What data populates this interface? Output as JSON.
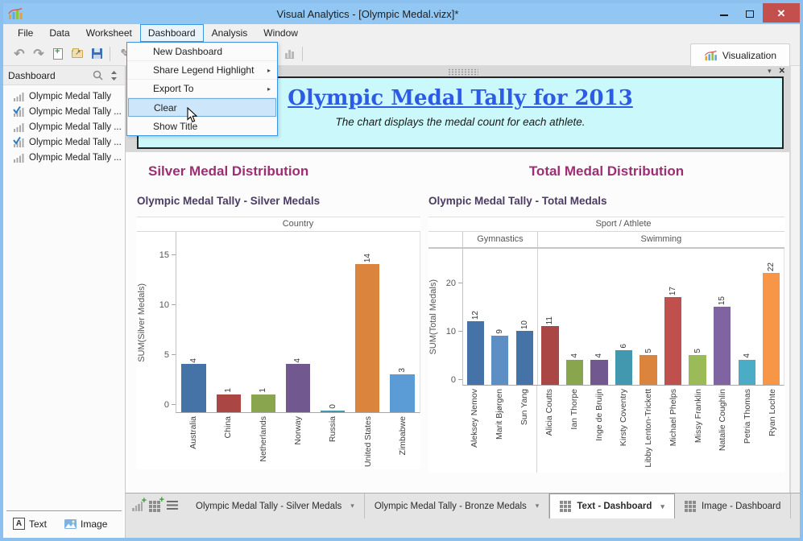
{
  "titlebar": {
    "title": "Visual Analytics - [Olympic Medal.vizx]*"
  },
  "menubar": {
    "items": [
      "File",
      "Data",
      "Worksheet",
      "Dashboard",
      "Analysis",
      "Window"
    ],
    "active_index": 3
  },
  "dashboard_menu": {
    "items": [
      {
        "label": "New Dashboard",
        "submenu": false,
        "highlighted": false
      },
      {
        "label": "Share Legend Highlight",
        "submenu": true,
        "highlighted": false
      },
      {
        "label": "Export To",
        "submenu": true,
        "highlighted": false
      },
      {
        "label": "Clear",
        "submenu": false,
        "highlighted": true
      },
      {
        "label": "Show Title",
        "submenu": false,
        "highlighted": false
      }
    ]
  },
  "toolbar": {
    "visualization_label": "Visualization"
  },
  "sidebar": {
    "header": "Dashboard",
    "items": [
      {
        "label": "Olympic Medal Tally",
        "checked": false
      },
      {
        "label": "Olympic Medal Tally ...",
        "checked": true
      },
      {
        "label": "Olympic Medal Tally ...",
        "checked": false
      },
      {
        "label": "Olympic Medal Tally ...",
        "checked": true
      },
      {
        "label": "Olympic Medal Tally ...",
        "checked": false
      }
    ],
    "footer": {
      "text_label": "Text",
      "image_label": "Image"
    }
  },
  "text_panel": {
    "title": "Olympic Medal Tally for 2013",
    "subtitle": "The chart displays the medal count for each athlete."
  },
  "chart_data": [
    {
      "type": "bar",
      "section_heading": "Silver Medal Distribution",
      "title": "Olympic Medal Tally - Silver Medals",
      "top_axis_label": "Country",
      "ylabel": "SUM(Silver Medals)",
      "yticks": [
        0,
        5,
        10,
        15
      ],
      "ylim": [
        0,
        16.5
      ],
      "grid": false,
      "groups": [
        {
          "name": null,
          "bars": [
            {
              "label": "Australia",
              "value": 4,
              "color": "#4572A7"
            },
            {
              "label": "China",
              "value": 1,
              "color": "#AA4643"
            },
            {
              "label": "Netherlands",
              "value": 1,
              "color": "#89A54E"
            },
            {
              "label": "Norway",
              "value": 4,
              "color": "#71588F"
            },
            {
              "label": "Russia",
              "value": 0,
              "color": "#4198AF"
            },
            {
              "label": "United States",
              "value": 14,
              "color": "#DB843D"
            },
            {
              "label": "Zimbabwe",
              "value": 3,
              "color": "#5B9CD6"
            }
          ]
        }
      ]
    },
    {
      "type": "bar",
      "section_heading": "Total Medal Distribution",
      "title": "Olympic Medal Tally - Total Medals",
      "top_axis_label": "Sport / Athlete",
      "ylabel": "SUM(Total Medals)",
      "yticks": [
        0,
        10,
        20
      ],
      "ylim": [
        0,
        26
      ],
      "grid": false,
      "groups": [
        {
          "name": "Gymnastics",
          "bars": [
            {
              "label": "Aleksey Nemov",
              "value": 12,
              "color": "#4572A7"
            },
            {
              "label": "Marit Bjørgen",
              "value": 9,
              "color": "#5E8FC4"
            },
            {
              "label": "Sun Yang",
              "value": 10,
              "color": "#4572A7"
            }
          ]
        },
        {
          "name": "Swimming",
          "bars": [
            {
              "label": "Alicia Coutts",
              "value": 11,
              "color": "#AA4643"
            },
            {
              "label": "Ian Thorpe",
              "value": 4,
              "color": "#89A54E"
            },
            {
              "label": "Inge de Bruijn",
              "value": 4,
              "color": "#71588F"
            },
            {
              "label": "Kirsty Coventry",
              "value": 6,
              "color": "#4198AF"
            },
            {
              "label": "Libby Lenton-Trickett",
              "value": 5,
              "color": "#DB843D"
            },
            {
              "label": "Michael Phelps",
              "value": 17,
              "color": "#C0504D"
            },
            {
              "label": "Missy Franklin",
              "value": 5,
              "color": "#9BBB59"
            },
            {
              "label": "Natalie Coughlin",
              "value": 15,
              "color": "#8064A2"
            },
            {
              "label": "Petria Thomas",
              "value": 4,
              "color": "#4BACC6"
            },
            {
              "label": "Ryan Lochte",
              "value": 22,
              "color": "#F79646"
            }
          ]
        }
      ]
    }
  ],
  "bottom_tabs": {
    "tabs": [
      {
        "label": "Olympic Medal Tally - Silver Medals",
        "icon": "none",
        "dropdown": true,
        "active": false
      },
      {
        "label": "Olympic Medal Tally - Bronze Medals",
        "icon": "none",
        "dropdown": true,
        "active": false
      },
      {
        "label": "Text - Dashboard",
        "icon": "grid",
        "dropdown": true,
        "active": true
      },
      {
        "label": "Image - Dashboard",
        "icon": "grid",
        "dropdown": false,
        "active": false
      }
    ]
  },
  "glyphs": {
    "dropdown_caret": "▾",
    "submenu_arrow": "▸",
    "panel_collapse": "▾",
    "panel_close": "✕",
    "close": "✕",
    "undo": "↶",
    "redo": "↷",
    "pen": "✎",
    "nav_back": "◀",
    "nav_forward": "▶"
  },
  "colors": {
    "titlebar": "#92C7F3",
    "window_border": "#8CC0EE",
    "close_button": "#C4504E",
    "accent_blue": "#3C97E0",
    "panel_cyan": "#CBF9FB",
    "title_blue": "#2E5BE6",
    "heading_magenta": "#9C2E74",
    "chart_title_purple": "#4B3C63"
  }
}
